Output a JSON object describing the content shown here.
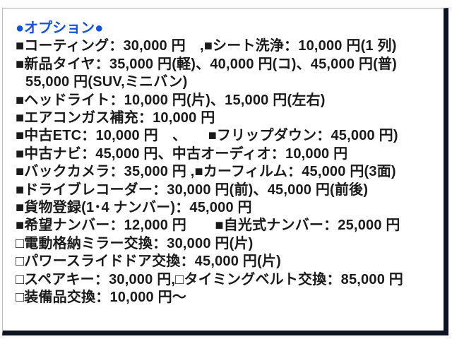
{
  "panel": {
    "header": "●オプション●",
    "header_color": "#1452e0",
    "text_color": "#1a1a1a",
    "border_color": "#0d1322",
    "background_color": "#ffffff",
    "lines": [
      "■コーティング：30,000 円　,■シート洗浄：10,000 円(1 列)",
      "■新品タイヤ：35,000 円(軽)、40,000 円(コ)、45,000 円(普)",
      "55,000 円(SUV,ミニバン)",
      "■ヘッドライト：10,000 円(片)、15,000 円(左右)",
      "■エアコンガス補充：10,000 円",
      "■中古ETC：10,000 円　、　　■フリップダウン：45,000 円)",
      "■中古ナビ：45,000 円、中古オーディオ：10,000 円",
      "■バックカメラ：35,000 円 ,■カーフィルム：45,000 円(3面)",
      "■ドライブレコーダー：30,000 円(前)、45,000 円(前後)",
      "■貨物登録(1･4 ナンバー)：45,000 円",
      "■希望ナンバー：12,000 円　　■自光式ナンバー：25,000 円",
      "□電動格納ミラー交換：30,000 円(片)",
      "□パワースライドドア交換：45,000 円(片)",
      "□スペアキー：30,000 円,□タイミングベルト交換：85,000 円",
      "□装備品交換：10,000 円～"
    ]
  }
}
